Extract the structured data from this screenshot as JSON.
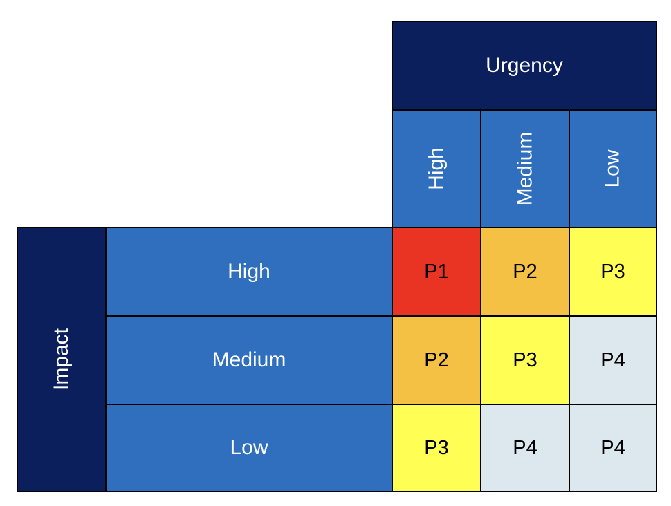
{
  "urgency": {
    "title": "Urgency",
    "levels": [
      "High",
      "Medium",
      "Low"
    ]
  },
  "impact": {
    "title": "Impact",
    "levels": [
      "High",
      "Medium",
      "Low"
    ]
  },
  "matrix": [
    [
      "P1",
      "P2",
      "P3"
    ],
    [
      "P2",
      "P3",
      "P4"
    ],
    [
      "P3",
      "P4",
      "P4"
    ]
  ],
  "priority_colors": {
    "P1": "#e93323",
    "P2": "#f4c144",
    "P3": "#fffe54",
    "P4": "#dce7ee"
  },
  "header_colors": {
    "dark": "#0b1f5c",
    "mid": "#2f6fbe"
  }
}
